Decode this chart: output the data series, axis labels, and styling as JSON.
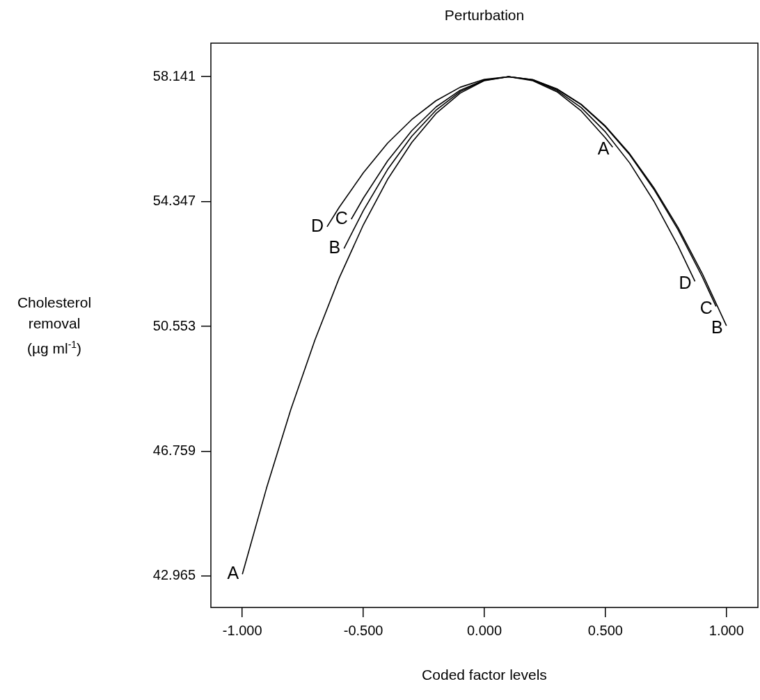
{
  "chart_data": {
    "type": "line",
    "title": "Perturbation",
    "xlabel": "Coded factor levels",
    "ylabel": "Cholesterol removal (µg ml$^{-1}$)",
    "xlim": [
      -1.13,
      1.13
    ],
    "ylim": [
      42.01,
      59.16
    ],
    "xticks": [
      {
        "value": -1,
        "label": "-1.000"
      },
      {
        "value": -0.5,
        "label": "-0.500"
      },
      {
        "value": 0,
        "label": "0.000"
      },
      {
        "value": 0.5,
        "label": "0.500"
      },
      {
        "value": 1,
        "label": "1.000"
      }
    ],
    "yticks": [
      42.965,
      46.759,
      50.553,
      54.347,
      58.141
    ],
    "grid": false,
    "legend": false,
    "marker": "none",
    "line_style": "solid",
    "series": [
      {
        "name": "A",
        "color": "#000000",
        "x": [
          -1,
          -0.9,
          -0.8,
          -0.7,
          -0.6,
          -0.5,
          -0.4,
          -0.3,
          -0.2,
          -0.1,
          0,
          0.1,
          0.2,
          0.3,
          0.4,
          0.5,
          0.53
        ],
        "values": [
          43.02,
          45.64,
          48.02,
          50.14,
          52.02,
          53.64,
          55.02,
          56.14,
          57.02,
          57.64,
          58.02,
          58.14,
          58.02,
          57.68,
          57.1,
          56.28,
          56.0
        ]
      },
      {
        "name": "B",
        "color": "#000000",
        "x": [
          -0.58,
          -0.5,
          -0.4,
          -0.3,
          -0.2,
          -0.1,
          0,
          0.1,
          0.2,
          0.3,
          0.4,
          0.5,
          0.6,
          0.7,
          0.8,
          0.9,
          1.0
        ],
        "values": [
          52.92,
          54.07,
          55.32,
          56.33,
          57.12,
          57.69,
          58.03,
          58.14,
          58.05,
          57.77,
          57.3,
          56.64,
          55.8,
          54.77,
          53.56,
          52.16,
          50.57
        ]
      },
      {
        "name": "C",
        "color": "#000000",
        "x": [
          -0.55,
          -0.5,
          -0.4,
          -0.3,
          -0.2,
          -0.1,
          0,
          0.1,
          0.2,
          0.3,
          0.4,
          0.5,
          0.6,
          0.7,
          0.8,
          0.9,
          0.957
        ],
        "values": [
          53.81,
          54.45,
          55.58,
          56.5,
          57.22,
          57.73,
          58.04,
          58.14,
          58.05,
          57.76,
          57.29,
          56.62,
          55.77,
          54.72,
          53.49,
          52.06,
          51.16
        ]
      },
      {
        "name": "D",
        "color": "#000000",
        "x": [
          -0.65,
          -0.6,
          -0.5,
          -0.4,
          -0.3,
          -0.2,
          -0.1,
          0,
          0.1,
          0.2,
          0.3,
          0.4,
          0.5,
          0.6,
          0.7,
          0.8,
          0.87
        ],
        "values": [
          53.58,
          54.17,
          55.22,
          56.12,
          56.84,
          57.41,
          57.82,
          58.06,
          58.14,
          58.04,
          57.72,
          57.2,
          56.46,
          55.52,
          54.36,
          53.0,
          51.92
        ]
      }
    ]
  }
}
